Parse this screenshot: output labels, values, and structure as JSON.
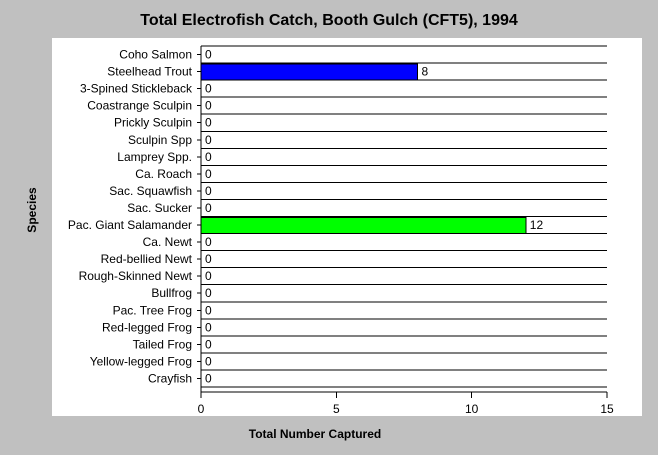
{
  "chart_data": {
    "type": "bar",
    "orientation": "horizontal",
    "title": "Total Electrofish Catch, Booth Gulch (CFT5), 1994",
    "xlabel": "Total Number Captured",
    "ylabel": "Species",
    "xlim": [
      0,
      15
    ],
    "xticks": [
      0,
      5,
      10,
      15
    ],
    "grid": "horizontal",
    "categories": [
      "Coho Salmon",
      "Steelhead Trout",
      "3-Spined Stickleback",
      "Coastrange Sculpin",
      "Prickly Sculpin",
      "Sculpin Spp",
      "Lamprey Spp.",
      "Ca. Roach",
      "Sac. Squawfish",
      "Sac. Sucker",
      "Pac. Giant Salamander",
      "Ca. Newt",
      "Red-bellied Newt",
      "Rough-Skinned Newt",
      "Bullfrog",
      "Pac. Tree Frog",
      "Red-legged Frog",
      "Tailed Frog",
      "Yellow-legged Frog",
      "Crayfish"
    ],
    "values": [
      0,
      8,
      0,
      0,
      0,
      0,
      0,
      0,
      0,
      0,
      12,
      0,
      0,
      0,
      0,
      0,
      0,
      0,
      0,
      0
    ],
    "bar_colors": {
      "Steelhead Trout": "#0000ff",
      "Pac. Giant Salamander": "#00ff00"
    }
  }
}
